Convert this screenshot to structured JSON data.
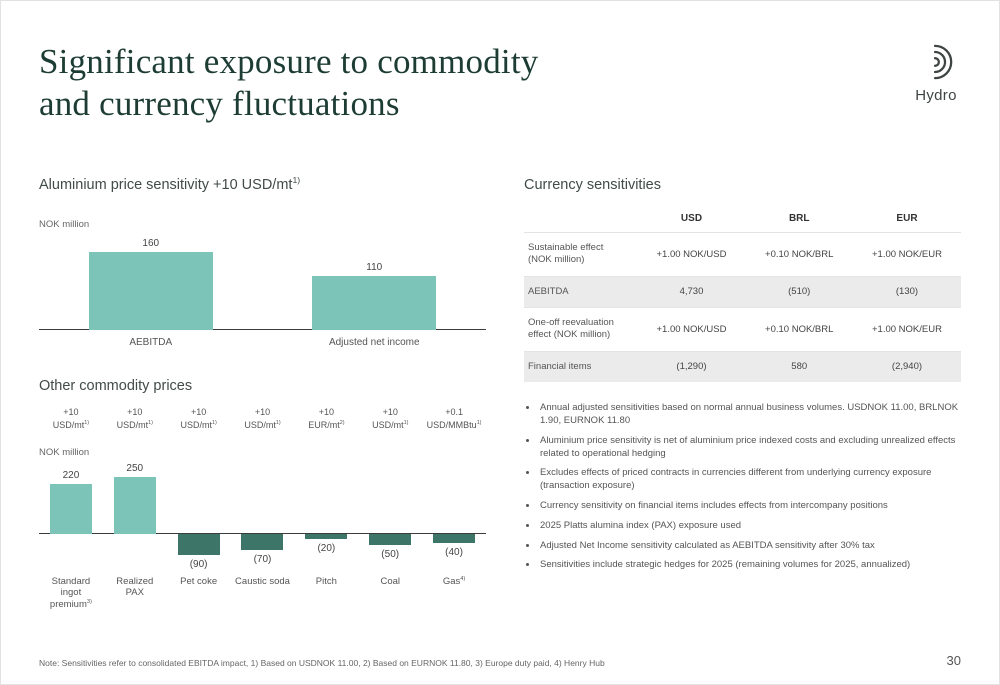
{
  "slide": {
    "title_line1": "Significant exposure to commodity",
    "title_line2": "and currency fluctuations",
    "logo_text": "Hydro",
    "page_number": "30",
    "footnote": "Note: Sensitivities refer to consolidated EBITDA impact, 1) Based on USDNOK 11.00, 2) Based on EURNOK 11.80, 3) Europe duty paid, 4) Henry Hub"
  },
  "sections": {
    "chart1_title": "Aluminium price sensitivity +10 USD/mt",
    "chart1_title_sup": "1)",
    "chart1_axis": "NOK million",
    "chart2_title": "Other commodity prices",
    "chart2_axis": "NOK million",
    "table_title": "Currency sensitivities"
  },
  "chart_data": [
    {
      "type": "bar",
      "title": "Aluminium price sensitivity +10 USD/mt 1)",
      "ylabel": "NOK million",
      "categories": [
        {
          "text": "AEBITDA",
          "sup": ""
        },
        {
          "text": "Adjusted net income",
          "sup": ""
        }
      ],
      "values": [
        160,
        110
      ],
      "value_labels": [
        "160",
        "110"
      ],
      "ylim": [
        0,
        170
      ],
      "grid": false,
      "legend": "none"
    },
    {
      "type": "bar",
      "title": "Other commodity prices",
      "ylabel": "NOK million",
      "units": [
        {
          "top": "+10",
          "main": "USD/mt",
          "sup": "1)"
        },
        {
          "top": "+10",
          "main": "USD/mt",
          "sup": "1)"
        },
        {
          "top": "+10",
          "main": "USD/mt",
          "sup": "1)"
        },
        {
          "top": "+10",
          "main": "USD/mt",
          "sup": "1)"
        },
        {
          "top": "+10",
          "main": "EUR/mt",
          "sup": "2)"
        },
        {
          "top": "+10",
          "main": "USD/mt",
          "sup": "1)"
        },
        {
          "top": "+0.1",
          "main": "USD/MMBtu",
          "sup": "1)"
        }
      ],
      "categories": [
        {
          "text": "Standard ingot premium",
          "sup": "3)"
        },
        {
          "text": "Realized PAX",
          "sup": ""
        },
        {
          "text": "Pet coke",
          "sup": ""
        },
        {
          "text": "Caustic soda",
          "sup": ""
        },
        {
          "text": "Pitch",
          "sup": ""
        },
        {
          "text": "Coal",
          "sup": ""
        },
        {
          "text": "Gas",
          "sup": "4)"
        }
      ],
      "values": [
        220,
        250,
        -90,
        -70,
        -20,
        -50,
        -40
      ],
      "value_labels": [
        "220",
        "250",
        "(90)",
        "(70)",
        "(20)",
        "(50)",
        "(40)"
      ],
      "ylim": [
        -110,
        270
      ],
      "grid": false,
      "legend": "none"
    }
  ],
  "currency_table": {
    "columns": [
      "USD",
      "BRL",
      "EUR"
    ],
    "rows": [
      {
        "label": "Sustainable effect (NOK million)",
        "values": [
          "+1.00 NOK/USD",
          "+0.10 NOK/BRL",
          "+1.00 NOK/EUR"
        ],
        "shaded": false
      },
      {
        "label": "AEBITDA",
        "values": [
          "4,730",
          "(510)",
          "(130)"
        ],
        "shaded": true
      },
      {
        "label": "One-off reevaluation effect (NOK million)",
        "values": [
          "+1.00 NOK/USD",
          "+0.10 NOK/BRL",
          "+1.00 NOK/EUR"
        ],
        "shaded": false
      },
      {
        "label": "Financial items",
        "values": [
          "(1,290)",
          "580",
          "(2,940)"
        ],
        "shaded": true
      }
    ]
  },
  "bullets": [
    "Annual adjusted sensitivities based on normal annual business volumes. USDNOK 11.00, BRLNOK 1.90, EURNOK 11.80",
    "Aluminium price sensitivity is net of aluminium price indexed costs and excluding unrealized effects related to operational hedging",
    "Excludes effects of priced contracts in currencies different from underlying currency exposure (transaction exposure)",
    "Currency sensitivity on financial items includes effects from intercompany positions",
    "2025 Platts alumina index (PAX) exposure used",
    "Adjusted Net Income sensitivity calculated as AEBITDA sensitivity after 30% tax",
    "Sensitivities include strategic hedges for 2025 (remaining volumes for 2025, annualized)"
  ],
  "colors": {
    "positive_bar": "#7cc3b8",
    "negative_bar": "#3d7568",
    "title_green": "#1d3c34",
    "shaded_row": "#ebebeb"
  }
}
